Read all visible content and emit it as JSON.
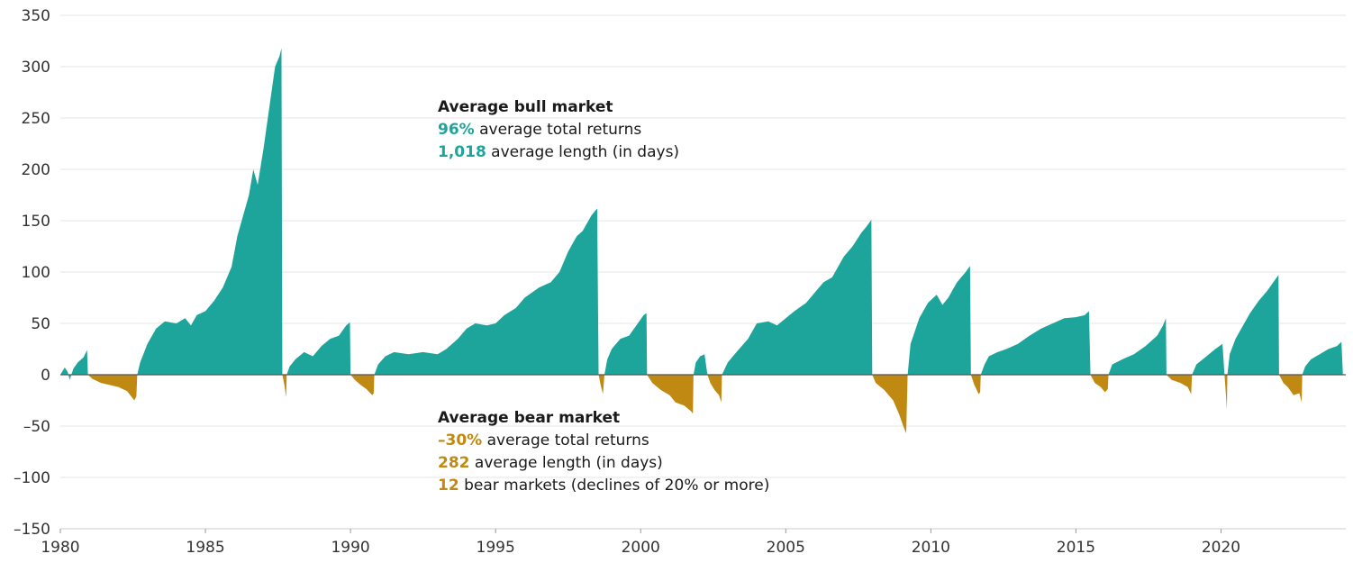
{
  "chart_data": {
    "type": "area",
    "title": "",
    "xlabel": "",
    "ylabel": "",
    "xlim": [
      1980,
      2024.3
    ],
    "ylim": [
      -150,
      350
    ],
    "x_ticks": [
      "1980",
      "1985",
      "1990",
      "1995",
      "2000",
      "2005",
      "2010",
      "2015",
      "2020"
    ],
    "y_ticks": [
      "350",
      "300",
      "250",
      "200",
      "150",
      "100",
      "50",
      "0",
      "–50",
      "–100",
      "–150"
    ],
    "grid": "horizontal",
    "colors": {
      "bull": "#1ea59b",
      "bear": "#c08a12",
      "grid": "#e6e6e6",
      "zero_line": "#555555"
    },
    "series": [
      {
        "type": "bull",
        "points": [
          [
            1980.0,
            0
          ],
          [
            1980.15,
            7
          ],
          [
            1980.25,
            3
          ],
          [
            1980.32,
            -5
          ],
          [
            1980.45,
            6
          ],
          [
            1980.6,
            12
          ],
          [
            1980.8,
            17
          ],
          [
            1980.92,
            24
          ],
          [
            1980.95,
            0
          ]
        ]
      },
      {
        "type": "bear",
        "points": [
          [
            1980.95,
            0
          ],
          [
            1981.1,
            -4
          ],
          [
            1981.4,
            -8
          ],
          [
            1981.7,
            -10
          ],
          [
            1982.0,
            -12
          ],
          [
            1982.3,
            -16
          ],
          [
            1982.55,
            -25
          ],
          [
            1982.62,
            -21
          ],
          [
            1982.65,
            0
          ]
        ]
      },
      {
        "type": "bull",
        "points": [
          [
            1982.65,
            0
          ],
          [
            1982.75,
            12
          ],
          [
            1983.0,
            30
          ],
          [
            1983.3,
            45
          ],
          [
            1983.6,
            52
          ],
          [
            1984.0,
            50
          ],
          [
            1984.3,
            55
          ],
          [
            1984.5,
            48
          ],
          [
            1984.7,
            58
          ],
          [
            1985.0,
            62
          ],
          [
            1985.3,
            72
          ],
          [
            1985.6,
            85
          ],
          [
            1985.9,
            105
          ],
          [
            1986.1,
            135
          ],
          [
            1986.3,
            155
          ],
          [
            1986.5,
            175
          ],
          [
            1986.65,
            200
          ],
          [
            1986.8,
            185
          ],
          [
            1987.0,
            220
          ],
          [
            1987.2,
            260
          ],
          [
            1987.4,
            300
          ],
          [
            1987.55,
            310
          ],
          [
            1987.62,
            318
          ],
          [
            1987.65,
            0
          ]
        ]
      },
      {
        "type": "bear",
        "points": [
          [
            1987.65,
            0
          ],
          [
            1987.72,
            -10
          ],
          [
            1987.78,
            -22
          ],
          [
            1987.8,
            0
          ]
        ]
      },
      {
        "type": "bull",
        "points": [
          [
            1987.8,
            0
          ],
          [
            1987.9,
            8
          ],
          [
            1988.1,
            15
          ],
          [
            1988.4,
            22
          ],
          [
            1988.7,
            18
          ],
          [
            1989.0,
            28
          ],
          [
            1989.3,
            35
          ],
          [
            1989.6,
            38
          ],
          [
            1989.85,
            48
          ],
          [
            1989.98,
            51
          ],
          [
            1990.0,
            0
          ]
        ]
      },
      {
        "type": "bear",
        "points": [
          [
            1990.0,
            0
          ],
          [
            1990.15,
            -5
          ],
          [
            1990.35,
            -10
          ],
          [
            1990.55,
            -14
          ],
          [
            1990.75,
            -20
          ],
          [
            1990.8,
            -18
          ],
          [
            1990.82,
            0
          ]
        ]
      },
      {
        "type": "bull",
        "points": [
          [
            1990.82,
            0
          ],
          [
            1990.95,
            10
          ],
          [
            1991.2,
            18
          ],
          [
            1991.5,
            22
          ],
          [
            1992.0,
            20
          ],
          [
            1992.5,
            22
          ],
          [
            1993.0,
            20
          ],
          [
            1993.3,
            25
          ],
          [
            1993.7,
            35
          ],
          [
            1994.0,
            45
          ],
          [
            1994.3,
            50
          ],
          [
            1994.7,
            48
          ],
          [
            1995.0,
            50
          ],
          [
            1995.3,
            58
          ],
          [
            1995.7,
            65
          ],
          [
            1996.0,
            75
          ],
          [
            1996.5,
            85
          ],
          [
            1996.9,
            90
          ],
          [
            1997.2,
            100
          ],
          [
            1997.5,
            120
          ],
          [
            1997.8,
            135
          ],
          [
            1998.0,
            140
          ],
          [
            1998.3,
            155
          ],
          [
            1998.5,
            162
          ],
          [
            1998.55,
            0
          ]
        ]
      },
      {
        "type": "bear",
        "points": [
          [
            1998.55,
            0
          ],
          [
            1998.62,
            -10
          ],
          [
            1998.7,
            -19
          ],
          [
            1998.75,
            0
          ]
        ]
      },
      {
        "type": "bull",
        "points": [
          [
            1998.75,
            0
          ],
          [
            1998.85,
            15
          ],
          [
            1999.0,
            25
          ],
          [
            1999.3,
            35
          ],
          [
            1999.6,
            38
          ],
          [
            1999.9,
            50
          ],
          [
            2000.1,
            58
          ],
          [
            2000.2,
            60
          ],
          [
            2000.22,
            0
          ]
        ]
      },
      {
        "type": "bear",
        "points": [
          [
            2000.22,
            0
          ],
          [
            2000.4,
            -8
          ],
          [
            2000.7,
            -15
          ],
          [
            2001.0,
            -20
          ],
          [
            2001.2,
            -27
          ],
          [
            2001.5,
            -30
          ],
          [
            2001.75,
            -36
          ],
          [
            2001.8,
            -38
          ],
          [
            2001.82,
            0
          ]
        ]
      },
      {
        "type": "bull",
        "points": [
          [
            2001.82,
            0
          ],
          [
            2001.9,
            12
          ],
          [
            2002.05,
            18
          ],
          [
            2002.2,
            20
          ],
          [
            2002.3,
            0
          ]
        ]
      },
      {
        "type": "bear",
        "points": [
          [
            2002.3,
            0
          ],
          [
            2002.4,
            -8
          ],
          [
            2002.55,
            -15
          ],
          [
            2002.7,
            -20
          ],
          [
            2002.78,
            -27
          ],
          [
            2002.8,
            0
          ]
        ]
      },
      {
        "type": "bull",
        "points": [
          [
            2002.8,
            0
          ],
          [
            2003.0,
            12
          ],
          [
            2003.3,
            22
          ],
          [
            2003.7,
            35
          ],
          [
            2004.0,
            50
          ],
          [
            2004.4,
            52
          ],
          [
            2004.7,
            48
          ],
          [
            2005.0,
            55
          ],
          [
            2005.3,
            62
          ],
          [
            2005.7,
            70
          ],
          [
            2006.0,
            80
          ],
          [
            2006.3,
            90
          ],
          [
            2006.6,
            95
          ],
          [
            2007.0,
            115
          ],
          [
            2007.3,
            125
          ],
          [
            2007.6,
            138
          ],
          [
            2007.8,
            145
          ],
          [
            2007.95,
            151
          ],
          [
            2007.98,
            0
          ]
        ]
      },
      {
        "type": "bear",
        "points": [
          [
            2007.98,
            0
          ],
          [
            2008.1,
            -8
          ],
          [
            2008.4,
            -15
          ],
          [
            2008.7,
            -25
          ],
          [
            2008.9,
            -38
          ],
          [
            2009.05,
            -50
          ],
          [
            2009.15,
            -57
          ],
          [
            2009.2,
            0
          ]
        ]
      },
      {
        "type": "bull",
        "points": [
          [
            2009.2,
            0
          ],
          [
            2009.3,
            30
          ],
          [
            2009.6,
            55
          ],
          [
            2009.9,
            70
          ],
          [
            2010.2,
            78
          ],
          [
            2010.4,
            68
          ],
          [
            2010.6,
            75
          ],
          [
            2010.9,
            90
          ],
          [
            2011.2,
            100
          ],
          [
            2011.35,
            106
          ],
          [
            2011.38,
            0
          ]
        ]
      },
      {
        "type": "bear",
        "points": [
          [
            2011.38,
            0
          ],
          [
            2011.5,
            -10
          ],
          [
            2011.65,
            -19
          ],
          [
            2011.7,
            -17
          ],
          [
            2011.72,
            0
          ]
        ]
      },
      {
        "type": "bull",
        "points": [
          [
            2011.72,
            0
          ],
          [
            2011.85,
            10
          ],
          [
            2012.0,
            18
          ],
          [
            2012.3,
            22
          ],
          [
            2012.6,
            25
          ],
          [
            2013.0,
            30
          ],
          [
            2013.4,
            38
          ],
          [
            2013.8,
            45
          ],
          [
            2014.2,
            50
          ],
          [
            2014.6,
            55
          ],
          [
            2015.0,
            56
          ],
          [
            2015.3,
            58
          ],
          [
            2015.45,
            62
          ],
          [
            2015.5,
            0
          ]
        ]
      },
      {
        "type": "bear",
        "points": [
          [
            2015.5,
            0
          ],
          [
            2015.65,
            -8
          ],
          [
            2015.85,
            -12
          ],
          [
            2016.0,
            -17
          ],
          [
            2016.1,
            -14
          ],
          [
            2016.12,
            0
          ]
        ]
      },
      {
        "type": "bull",
        "points": [
          [
            2016.12,
            0
          ],
          [
            2016.25,
            10
          ],
          [
            2016.6,
            15
          ],
          [
            2017.0,
            20
          ],
          [
            2017.4,
            28
          ],
          [
            2017.8,
            38
          ],
          [
            2018.0,
            48
          ],
          [
            2018.1,
            55
          ],
          [
            2018.12,
            0
          ]
        ]
      },
      {
        "type": "bear",
        "points": [
          [
            2018.12,
            0
          ],
          [
            2018.3,
            -5
          ],
          [
            2018.6,
            -8
          ],
          [
            2018.85,
            -12
          ],
          [
            2018.97,
            -19
          ],
          [
            2019.0,
            0
          ]
        ]
      },
      {
        "type": "bull",
        "points": [
          [
            2019.0,
            0
          ],
          [
            2019.15,
            10
          ],
          [
            2019.5,
            18
          ],
          [
            2019.8,
            25
          ],
          [
            2020.05,
            30
          ],
          [
            2020.12,
            0
          ]
        ]
      },
      {
        "type": "bear",
        "points": [
          [
            2020.12,
            0
          ],
          [
            2020.17,
            -20
          ],
          [
            2020.2,
            -34
          ],
          [
            2020.22,
            0
          ]
        ]
      },
      {
        "type": "bull",
        "points": [
          [
            2020.22,
            0
          ],
          [
            2020.3,
            20
          ],
          [
            2020.5,
            35
          ],
          [
            2020.8,
            50
          ],
          [
            2021.0,
            60
          ],
          [
            2021.3,
            72
          ],
          [
            2021.6,
            82
          ],
          [
            2021.85,
            92
          ],
          [
            2021.98,
            97
          ],
          [
            2022.0,
            0
          ]
        ]
      },
      {
        "type": "bear",
        "points": [
          [
            2022.0,
            0
          ],
          [
            2022.15,
            -8
          ],
          [
            2022.3,
            -12
          ],
          [
            2022.5,
            -20
          ],
          [
            2022.7,
            -18
          ],
          [
            2022.78,
            -27
          ],
          [
            2022.8,
            0
          ]
        ]
      },
      {
        "type": "bull",
        "points": [
          [
            2022.8,
            0
          ],
          [
            2022.9,
            8
          ],
          [
            2023.1,
            15
          ],
          [
            2023.4,
            20
          ],
          [
            2023.7,
            25
          ],
          [
            2024.0,
            28
          ],
          [
            2024.15,
            32
          ],
          [
            2024.2,
            0
          ]
        ]
      }
    ],
    "annotations": {
      "bull": {
        "heading": "Average bull market",
        "returns_value": "96%",
        "returns_text": " average total returns",
        "length_value": "1,018",
        "length_text": " average length (in days)"
      },
      "bear": {
        "heading": "Average bear market",
        "returns_value": "–30%",
        "returns_text": " average total returns",
        "length_value": "282",
        "length_text": " average length (in days)",
        "count_value": "12",
        "count_text": " bear markets (declines of 20% or more)"
      }
    }
  }
}
